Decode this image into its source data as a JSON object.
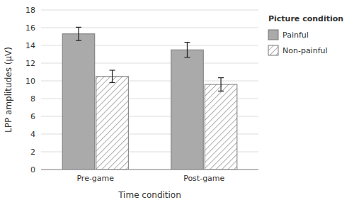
{
  "chart_data": {
    "type": "bar",
    "categories": [
      "Pre-game",
      "Post-game"
    ],
    "series": [
      {
        "name": "Painful",
        "color": "#aaaaaa",
        "values": [
          15.3,
          13.5
        ],
        "errors": [
          0.75,
          0.85
        ]
      },
      {
        "name": "Non-painful",
        "color": "#ffffff",
        "values": [
          10.5,
          9.6
        ],
        "errors": [
          0.7,
          0.75
        ]
      }
    ],
    "xlabel": "Time condition",
    "ylabel": "LPP amplitudes (μV)",
    "legend_title": "Picture condition",
    "ylim": [
      0,
      18
    ],
    "yticks": [
      0,
      2,
      4,
      6,
      8,
      10,
      12,
      14,
      16,
      18
    ],
    "grid": true,
    "legend": "right"
  }
}
